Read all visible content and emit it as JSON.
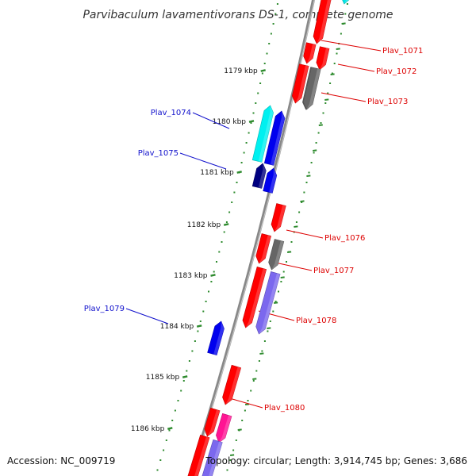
{
  "title": "Parvibaculum lavamentivorans DS-1, complete genome",
  "footer": {
    "accession": "Accession: NC_009719",
    "topology": "Topology: circular; Length: 3,914,745 bp; Genes: 3,686"
  },
  "colors": {
    "backbone": "#888888",
    "ticks": "#2e8b2e",
    "forward_label": "#1010cc",
    "reverse_label": "#dd0000"
  },
  "scale": {
    "unit": "kbp",
    "tick_labels": [
      "1179 kbp",
      "1180 kbp",
      "1181 kbp",
      "1182 kbp",
      "1183 kbp",
      "1184 kbp",
      "1185 kbp",
      "1186 kbp"
    ]
  },
  "genes": [
    {
      "name": "",
      "strand": "reverse",
      "color": "#ff0000"
    },
    {
      "name": "",
      "strand": "reverse",
      "color": "#00e5e5"
    },
    {
      "name": "",
      "strand": "reverse",
      "color": "#ff0000"
    },
    {
      "name": "Plav_1071",
      "strand": "reverse",
      "color": "#ff0000"
    },
    {
      "name": "Plav_1072",
      "strand": "reverse",
      "color": "#666666"
    },
    {
      "name": "Plav_1073",
      "strand": "reverse",
      "color": "#ff0000"
    },
    {
      "name": "",
      "strand": "reverse",
      "color": "#666666"
    },
    {
      "name": "Plav_1074",
      "strand": "forward",
      "color": "#00f0f0"
    },
    {
      "name": "",
      "strand": "forward",
      "color": "#0000ee"
    },
    {
      "name": "Plav_1075",
      "strand": "forward",
      "color": "#000080"
    },
    {
      "name": "",
      "strand": "forward",
      "color": "#0000ee"
    },
    {
      "name": "",
      "strand": "reverse",
      "color": "#ff0000"
    },
    {
      "name": "Plav_1076",
      "strand": "reverse",
      "color": "#ff0000"
    },
    {
      "name": "Plav_1077",
      "strand": "reverse",
      "color": "#666666"
    },
    {
      "name": "",
      "strand": "reverse",
      "color": "#ff0000"
    },
    {
      "name": "Plav_1078",
      "strand": "reverse",
      "color": "#7b68ee"
    },
    {
      "name": "Plav_1079",
      "strand": "forward",
      "color": "#0000ee"
    },
    {
      "name": "",
      "strand": "reverse",
      "color": "#ff0000"
    },
    {
      "name": "Plav_1080",
      "strand": "reverse",
      "color": "#ff0000"
    },
    {
      "name": "",
      "strand": "reverse",
      "color": "#ff1493"
    },
    {
      "name": "",
      "strand": "reverse",
      "color": "#ff0000"
    },
    {
      "name": "",
      "strand": "reverse",
      "color": "#7b68ee"
    }
  ]
}
